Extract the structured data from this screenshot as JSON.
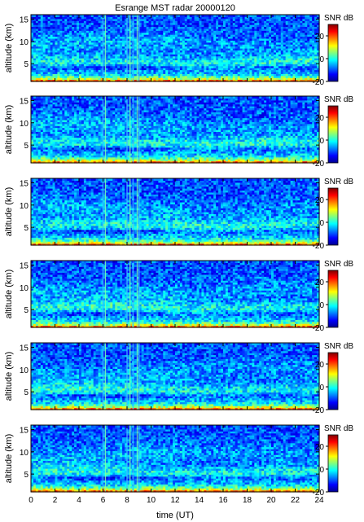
{
  "figure": {
    "title": "Esrange MST radar 20000120"
  },
  "chart_data": {
    "type": "heatmap",
    "title": "Esrange MST radar 20000120",
    "panel_count": 6,
    "xlabel": "time (UT)",
    "ylabel": "altitude (km)",
    "xlim": [
      0,
      24
    ],
    "ylim": [
      1,
      16
    ],
    "x_ticks": [
      0,
      2,
      4,
      6,
      8,
      10,
      12,
      14,
      16,
      18,
      20,
      22,
      24
    ],
    "y_ticks": [
      5,
      10,
      15
    ],
    "colorbar": {
      "label": "SNR dB",
      "range": [
        -20,
        30
      ],
      "ticks": [
        20,
        0,
        -20
      ],
      "colormap": "jet"
    },
    "features": {
      "interference_columns_ut": [
        6.0,
        6.2,
        8.0,
        8.25,
        8.5,
        8.85,
        9.0
      ],
      "strong_echo_below_km": 3,
      "enhanced_layer_km": 5.5,
      "upper_noise_snr_db": -10
    }
  }
}
